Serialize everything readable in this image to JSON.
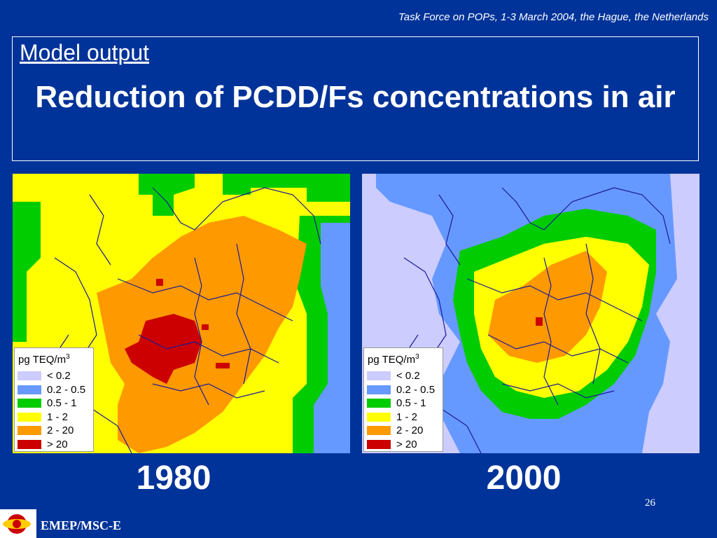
{
  "header": {
    "note": "Task Force on POPs, 1-3 March 2004, the Hague, the Netherlands"
  },
  "title_box": {
    "section_label": "Model output",
    "title": "Reduction of PCDD/Fs concentrations in air"
  },
  "legend": {
    "unit_prefix": "pg TEQ/m",
    "unit_exponent": "3",
    "classes": [
      {
        "label": "< 0.2",
        "color": "#ccccff"
      },
      {
        "label": "0.2 - 0.5",
        "color": "#6699ff"
      },
      {
        "label": "0.5 - 1",
        "color": "#00cc00"
      },
      {
        "label": "1 - 2",
        "color": "#ffff00"
      },
      {
        "label": "2 - 20",
        "color": "#ff9900"
      },
      {
        "label": "> 20",
        "color": "#cc0000"
      }
    ]
  },
  "maps": [
    {
      "year": "1980",
      "background": "#ffff00"
    },
    {
      "year": "2000",
      "background": "#ccccff"
    }
  ],
  "footer": {
    "page_number": "26",
    "organization": "EMEP/MSC-E",
    "logo_text": "MSC-E"
  },
  "colors": {
    "slide_background": "#003399",
    "borders": "#1a1a99"
  }
}
